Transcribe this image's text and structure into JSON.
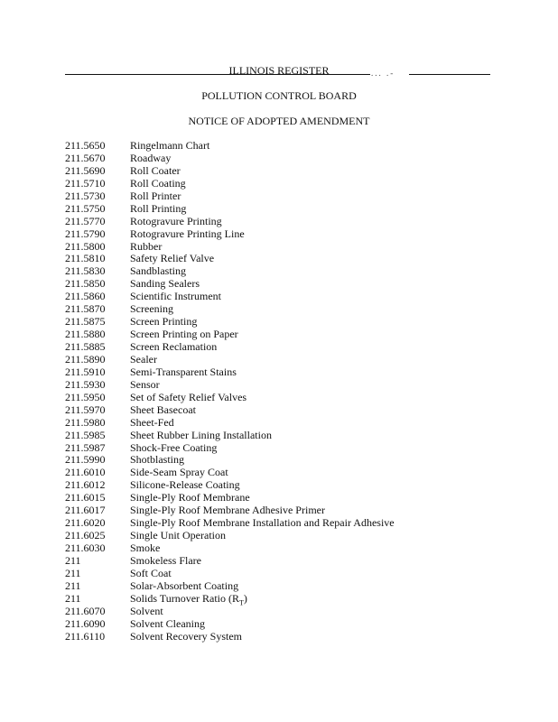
{
  "header": {
    "register": "ILLINOIS REGISTER",
    "agency": "POLLUTION CONTROL BOARD",
    "notice": "NOTICE OF ADOPTED AMENDMENT"
  },
  "entries": [
    {
      "section": "211.5650",
      "term": "Ringelmann Chart"
    },
    {
      "section": "211.5670",
      "term": "Roadway"
    },
    {
      "section": "211.5690",
      "term": "Roll Coater"
    },
    {
      "section": "211.5710",
      "term": "Roll Coating"
    },
    {
      "section": "211.5730",
      "term": "Roll Printer"
    },
    {
      "section": "211.5750",
      "term": "Roll Printing"
    },
    {
      "section": "211.5770",
      "term": "Rotogravure Printing"
    },
    {
      "section": "211.5790",
      "term": "Rotogravure Printing Line"
    },
    {
      "section": "211.5800",
      "term": "Rubber"
    },
    {
      "section": "211.5810",
      "term": "Safety Relief Valve"
    },
    {
      "section": "211.5830",
      "term": "Sandblasting"
    },
    {
      "section": "211.5850",
      "term": "Sanding Sealers"
    },
    {
      "section": "211.5860",
      "term": "Scientific Instrument"
    },
    {
      "section": "211.5870",
      "term": "Screening"
    },
    {
      "section": "211.5875",
      "term": "Screen Printing"
    },
    {
      "section": "211.5880",
      "term": "Screen Printing on Paper"
    },
    {
      "section": "211.5885",
      "term": "Screen Reclamation"
    },
    {
      "section": "211.5890",
      "term": "Sealer"
    },
    {
      "section": "211.5910",
      "term": "Semi-Transparent Stains"
    },
    {
      "section": "211.5930",
      "term": "Sensor"
    },
    {
      "section": "211.5950",
      "term": "Set of Safety Relief Valves"
    },
    {
      "section": "211.5970",
      "term": "Sheet Basecoat"
    },
    {
      "section": "211.5980",
      "term": "Sheet-Fed"
    },
    {
      "section": "211.5985",
      "term": "Sheet Rubber Lining Installation"
    },
    {
      "section": "211.5987",
      "term": "Shock-Free Coating"
    },
    {
      "section": "211.5990",
      "term": "Shotblasting"
    },
    {
      "section": "211.6010",
      "term": "Side-Seam Spray Coat"
    },
    {
      "section": "211.6012",
      "term": "Silicone-Release Coating"
    },
    {
      "section": "211.6015",
      "term": "Single-Ply Roof Membrane"
    },
    {
      "section": "211.6017",
      "term": "Single-Ply Roof Membrane Adhesive Primer"
    },
    {
      "section": "211.6020",
      "term": "Single-Ply Roof Membrane Installation and Repair Adhesive"
    },
    {
      "section": "211.6025",
      "term": "Single Unit Operation"
    },
    {
      "section": "211.6030",
      "term": "Smoke"
    },
    {
      "section": "211",
      "term": "Smokeless Flare"
    },
    {
      "section": "211",
      "term": "Soft Coat"
    },
    {
      "section": "211",
      "term": "Solar-Absorbent Coating"
    },
    {
      "section": "211",
      "term": "Solids Turnover Ratio (R",
      "term_sub": "T",
      "term_end": ")"
    },
    {
      "section": "211.6070",
      "term": "Solvent"
    },
    {
      "section": "211.6090",
      "term": "Solvent Cleaning"
    },
    {
      "section": "211.6110",
      "term": "Solvent Recovery System"
    }
  ]
}
